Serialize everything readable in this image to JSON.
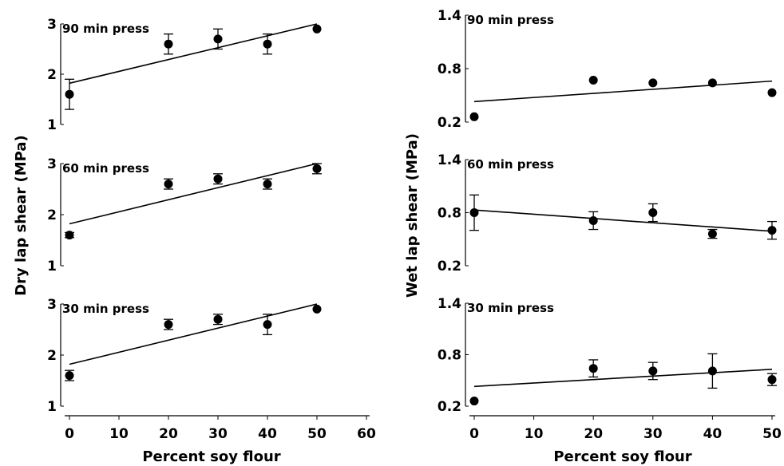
{
  "figure": {
    "left_ylabel": "Dry lap shear (MPa)",
    "right_ylabel": "Wet lap shear (MPa)",
    "left_xlabel": "Percent soy flour",
    "right_xlabel": "Percent soy flour"
  },
  "chart_data": [
    {
      "type": "scatter",
      "title": "90 min press",
      "xlabel": "",
      "ylabel": "Dry lap shear (MPa)",
      "xlim": [
        0,
        60
      ],
      "ylim": [
        1,
        3
      ],
      "yticks": [
        "1",
        "2",
        "3"
      ],
      "xticks": [],
      "x": [
        0,
        20,
        30,
        40,
        50
      ],
      "y": [
        1.6,
        2.6,
        2.7,
        2.6,
        2.9
      ],
      "error": [
        0.3,
        0.2,
        0.2,
        0.2,
        0
      ],
      "fit": [
        [
          0,
          1.82
        ],
        [
          50,
          3.0
        ]
      ]
    },
    {
      "type": "scatter",
      "title": "60 min press",
      "xlabel": "",
      "ylabel": "Dry lap shear (MPa)",
      "xlim": [
        0,
        60
      ],
      "ylim": [
        1,
        3
      ],
      "yticks": [
        "1",
        "2",
        "3"
      ],
      "xticks": [],
      "x": [
        0,
        20,
        30,
        40,
        50
      ],
      "y": [
        1.6,
        2.6,
        2.7,
        2.6,
        2.9
      ],
      "error": [
        0.05,
        0.1,
        0.1,
        0.1,
        0.1
      ],
      "fit": [
        [
          0,
          1.82
        ],
        [
          50,
          3.0
        ]
      ]
    },
    {
      "type": "scatter",
      "title": "30 min press",
      "xlabel": "Percent soy flour",
      "ylabel": "Dry lap shear (MPa)",
      "xlim": [
        0,
        60
      ],
      "ylim": [
        1,
        3
      ],
      "yticks": [
        "1",
        "2",
        "3"
      ],
      "xticks": [
        "0",
        "10",
        "20",
        "30",
        "40",
        "50",
        "60"
      ],
      "x": [
        0,
        20,
        30,
        40,
        50
      ],
      "y": [
        1.6,
        2.6,
        2.7,
        2.6,
        2.9
      ],
      "error": [
        0.1,
        0.1,
        0.1,
        0.2,
        0
      ],
      "fit": [
        [
          0,
          1.82
        ],
        [
          50,
          3.0
        ]
      ]
    },
    {
      "type": "scatter",
      "title": "90 min press",
      "xlabel": "",
      "ylabel": "Wet lap shear (MPa)",
      "xlim": [
        0,
        50
      ],
      "ylim": [
        0.2,
        1.4
      ],
      "yticks": [
        "0.2",
        "0.8",
        "1.4"
      ],
      "xticks": [],
      "x": [
        0,
        20,
        30,
        40,
        50
      ],
      "y": [
        0.26,
        0.67,
        0.64,
        0.64,
        0.53
      ],
      "error": [
        0,
        0,
        0,
        0,
        0
      ],
      "fit": [
        [
          0,
          0.43
        ],
        [
          50,
          0.66
        ]
      ]
    },
    {
      "type": "scatter",
      "title": "60 min press",
      "xlabel": "",
      "ylabel": "Wet lap shear (MPa)",
      "xlim": [
        0,
        50
      ],
      "ylim": [
        0.2,
        1.4
      ],
      "yticks": [
        "0.2",
        "0.8",
        "1.4"
      ],
      "xticks": [],
      "x": [
        0,
        20,
        30,
        40,
        50
      ],
      "y": [
        0.8,
        0.71,
        0.8,
        0.56,
        0.6
      ],
      "error": [
        0.2,
        0.1,
        0.1,
        0.05,
        0.1
      ],
      "fit": [
        [
          0,
          0.83
        ],
        [
          50,
          0.59
        ]
      ]
    },
    {
      "type": "scatter",
      "title": "30 min press",
      "xlabel": "Percent soy flour",
      "ylabel": "Wet lap shear (MPa)",
      "xlim": [
        0,
        50
      ],
      "ylim": [
        0.2,
        1.4
      ],
      "yticks": [
        "0.2",
        "0.8",
        "1.4"
      ],
      "xticks": [
        "0",
        "10",
        "20",
        "30",
        "40",
        "50"
      ],
      "x": [
        0,
        20,
        30,
        40,
        50
      ],
      "y": [
        0.26,
        0.64,
        0.61,
        0.61,
        0.51
      ],
      "error": [
        0,
        0.1,
        0.1,
        0.2,
        0.07
      ],
      "fit": [
        [
          0,
          0.43
        ],
        [
          50,
          0.63
        ]
      ]
    }
  ]
}
